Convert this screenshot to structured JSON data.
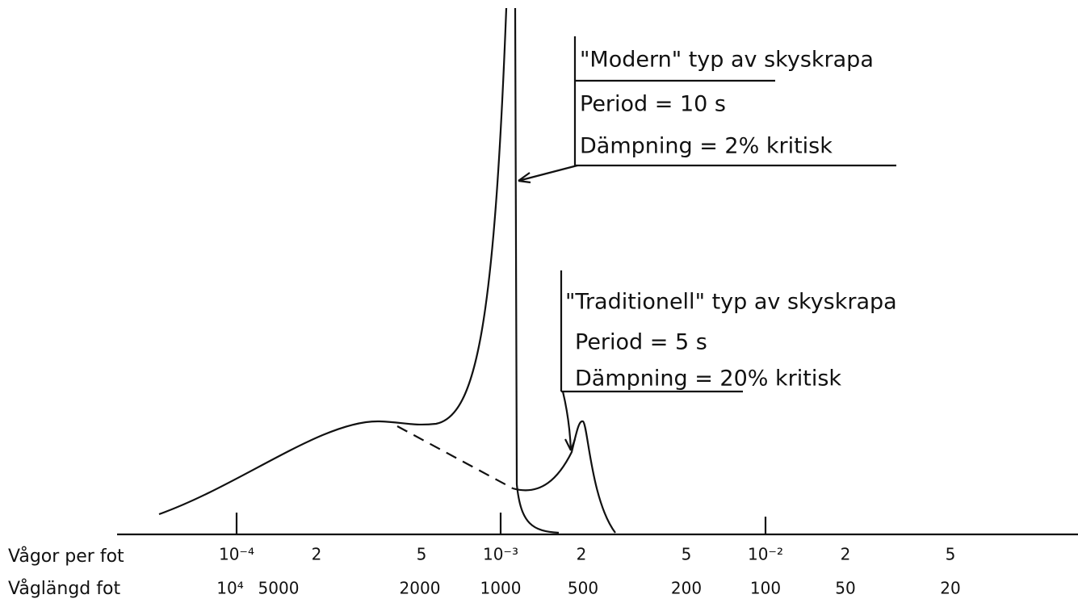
{
  "axis": {
    "row1_label": "Vågor per fot",
    "row1_ticks": [
      "10⁻⁴",
      "2",
      "5",
      "10⁻³",
      "2",
      "5",
      "10⁻²",
      "2",
      "5"
    ],
    "row2_label": "Våglängd fot",
    "row2_ticks": [
      "10⁴",
      "5000",
      "2000",
      "1000",
      "500",
      "200",
      "100",
      "50",
      "20"
    ]
  },
  "annotations": [
    {
      "title": "\"Modern\" typ av skyskrapa",
      "period": "Period = 10 s",
      "damping": "Dämpning = 2% kritisk"
    },
    {
      "title": "\"Traditionell\" typ av skyskrapa",
      "period": "Period = 5 s",
      "damping": "Dämpning = 20% kritisk"
    }
  ]
}
